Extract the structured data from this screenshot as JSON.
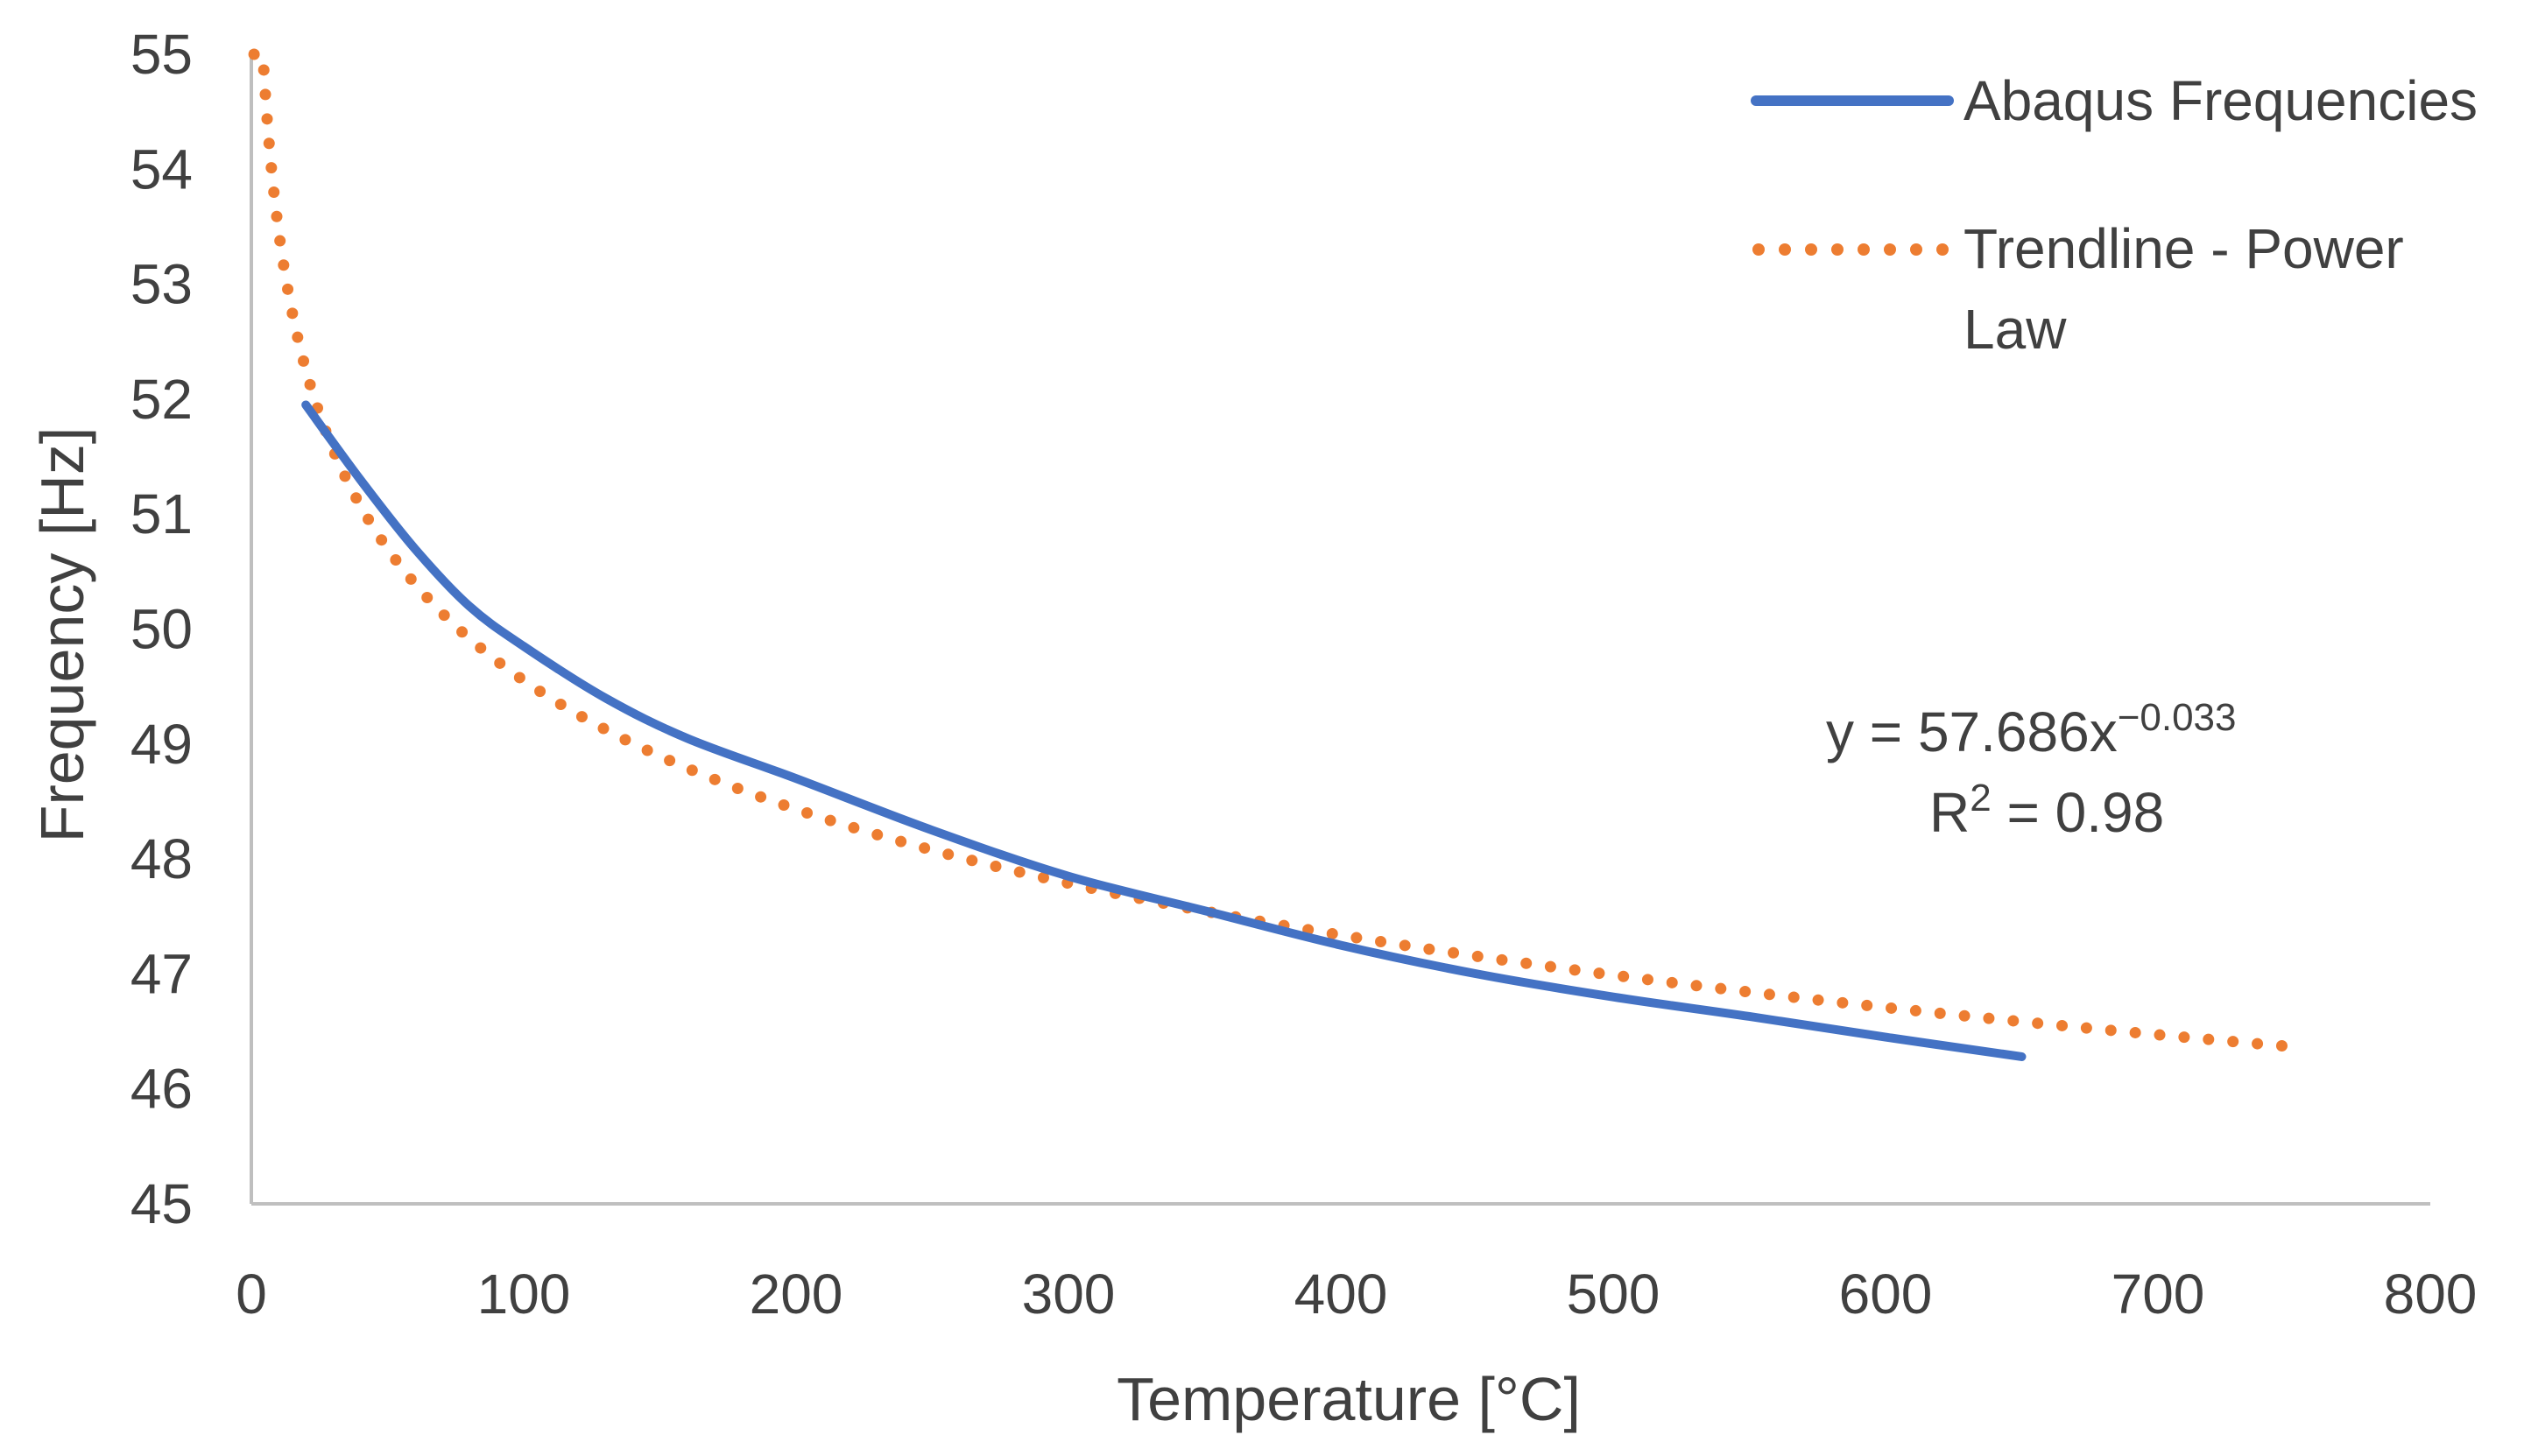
{
  "chart_data": {
    "type": "line",
    "xlabel": "Temperature [°C]",
    "ylabel": "Frequency [Hz]",
    "xlim": [
      0,
      800
    ],
    "ylim": [
      45,
      55
    ],
    "xticks": [
      "0",
      "100",
      "200",
      "300",
      "400",
      "500",
      "600",
      "700",
      "800"
    ],
    "yticks": [
      "45",
      "46",
      "47",
      "48",
      "49",
      "50",
      "51",
      "52",
      "53",
      "54",
      "55"
    ],
    "grid": false,
    "legend_position": "top-right",
    "series": [
      {
        "name": "Abaqus Frequencies",
        "style": "solid",
        "color": "#4472C4",
        "x": [
          20,
          40,
          60,
          80,
          100,
          130,
          160,
          200,
          250,
          300,
          350,
          400,
          450,
          500,
          550,
          600,
          650
        ],
        "y": [
          51.95,
          51.3,
          50.7,
          50.2,
          49.85,
          49.4,
          49.05,
          48.7,
          48.25,
          47.85,
          47.55,
          47.25,
          47.0,
          46.8,
          46.63,
          46.45,
          46.28
        ]
      },
      {
        "name": "Trendline - Power Law",
        "legend_lines": [
          "Trendline - Power",
          "Law"
        ],
        "style": "dotted",
        "color": "#ED7D31",
        "function": "power",
        "coefficient": 57.686,
        "exponent": -0.033,
        "x_range": [
          1,
          750
        ]
      }
    ],
    "annotations": {
      "equation_base": "y = 57.686x",
      "equation_exponent": "−0.033",
      "r2_prefix": "R",
      "r2_superscript": "2",
      "r2_value": " = 0.98"
    }
  }
}
